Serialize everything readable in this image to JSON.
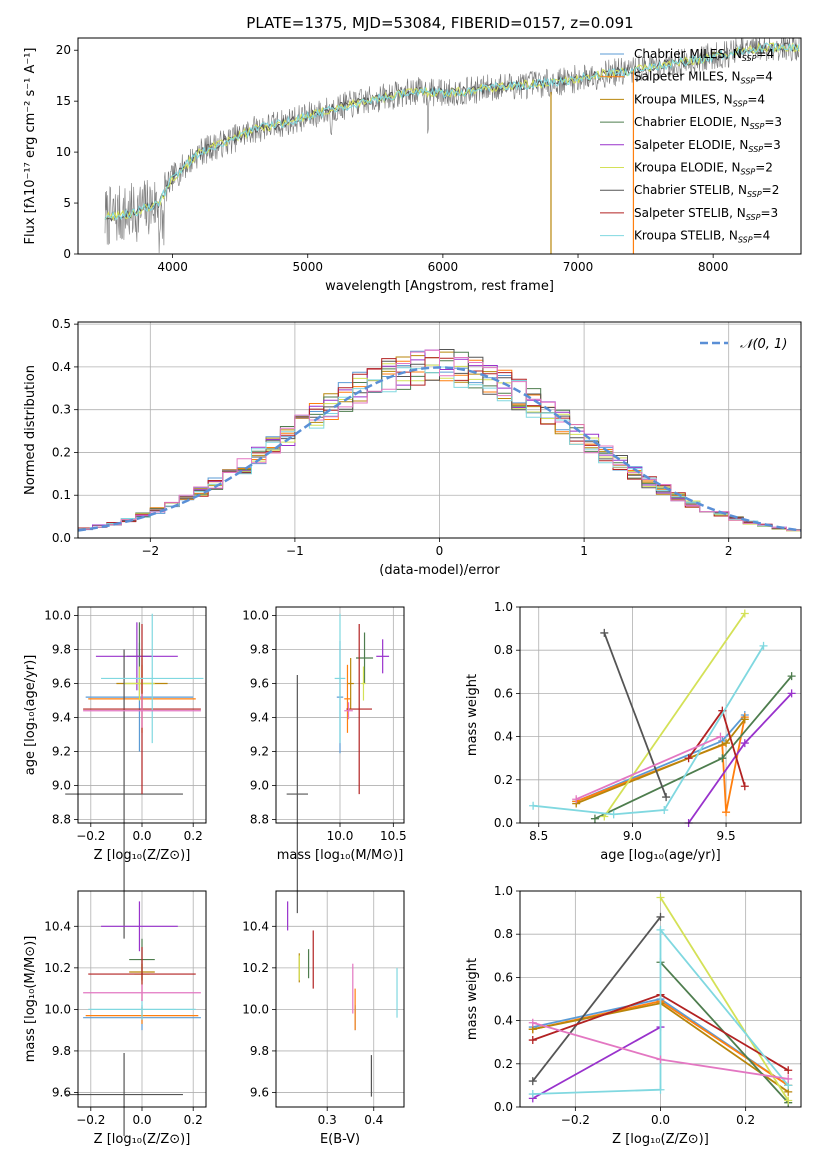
{
  "title": "PLATE=1375, MJD=53084, FIBERID=0157, z=0.091",
  "series_colors": [
    "#5b9bd5",
    "#ff7f0e",
    "#b8860b",
    "#4e7d4e",
    "#9932cc",
    "#d4e157",
    "#555555",
    "#b22222",
    "#80d8e0"
  ],
  "chart_data": [
    {
      "id": "spectrum",
      "type": "line",
      "title": "PLATE=1375, MJD=53084, FIBERID=0157, z=0.091",
      "xlabel": "wavelength [Angstrom, rest frame]",
      "ylabel": "Flux [fλ10⁻¹⁷ erg cm⁻² s⁻¹ A⁻¹]",
      "xlim": [
        3300,
        8650
      ],
      "ylim": [
        0,
        21.2
      ],
      "xticks": [
        "4000",
        "5000",
        "6000",
        "7000",
        "8000"
      ],
      "yticks": [
        "0",
        "5",
        "10",
        "15",
        "20"
      ],
      "legend_position": "right",
      "legend": [
        {
          "label": "Chabrier MILES, N",
          "sub": "SSP",
          "suffix": "=4"
        },
        {
          "label": "Salpeter MILES, N",
          "sub": "SSP",
          "suffix": "=4"
        },
        {
          "label": "Kroupa MILES, N",
          "sub": "SSP",
          "suffix": "=4"
        },
        {
          "label": "Chabrier ELODIE, N",
          "sub": "SSP",
          "suffix": "=3"
        },
        {
          "label": "Salpeter ELODIE, N",
          "sub": "SSP",
          "suffix": "=3"
        },
        {
          "label": "Kroupa ELODIE, N",
          "sub": "SSP",
          "suffix": "=2"
        },
        {
          "label": "Chabrier STELIB, N",
          "sub": "SSP",
          "suffix": "=2"
        },
        {
          "label": "Salpeter STELIB, N",
          "sub": "SSP",
          "suffix": "=3"
        },
        {
          "label": "Kroupa STELIB, N",
          "sub": "SSP",
          "suffix": "=4"
        }
      ],
      "continuum_anchors": {
        "wavelength": [
          3500,
          3700,
          3900,
          4000,
          4200,
          4400,
          4600,
          4800,
          5000,
          5200,
          5400,
          5600,
          5800,
          6000,
          6200,
          6400,
          6600,
          6800,
          7000,
          7200,
          7400,
          7600,
          7800,
          8000,
          8200,
          8400
        ],
        "flux": [
          3.6,
          4.0,
          5.0,
          7.5,
          10.0,
          11.0,
          12.2,
          12.8,
          13.5,
          14.3,
          14.9,
          15.5,
          16.0,
          15.8,
          16.0,
          16.4,
          16.6,
          16.8,
          17.2,
          17.7,
          18.0,
          18.5,
          18.9,
          19.4,
          19.9,
          20.3
        ]
      }
    },
    {
      "id": "residuals",
      "type": "line",
      "xlabel": "(data-model)/error",
      "ylabel": "Normed distribution",
      "xlim": [
        -2.5,
        2.5
      ],
      "ylim": [
        0,
        0.505
      ],
      "xticks": [
        "−2",
        "−1",
        "0",
        "1",
        "2"
      ],
      "yticks": [
        "0.0",
        "0.1",
        "0.2",
        "0.3",
        "0.4",
        "0.5"
      ],
      "grid": true,
      "legend_position": "top-right",
      "legend_label": "𝒩(0, 1)",
      "normal_color": "#5a8fd6",
      "histogram_bin_width": 0.1
    },
    {
      "id": "age_vs_Z",
      "type": "scatter",
      "xlabel": "Z [log₁₀(Z/Z⊙)]",
      "ylabel": "age  [log₁₀(age/yr)]",
      "xlim": [
        -0.25,
        0.25
      ],
      "ylim": [
        8.78,
        10.05
      ],
      "xticks": [
        "−0.2",
        "0.0",
        "0.2"
      ],
      "yticks": [
        "8.8",
        "9.0",
        "9.2",
        "9.4",
        "9.6",
        "9.8",
        "10.0"
      ],
      "grid": true,
      "points": [
        {
          "x": -0.01,
          "y": 9.52,
          "xerr": 0.21,
          "yerr": 0.32
        },
        {
          "x": 0.0,
          "y": 9.51,
          "xerr": 0.21,
          "yerr": 0.2
        },
        {
          "x": 0.0,
          "y": 9.6,
          "xerr": 0.1,
          "yerr": 0.15
        },
        {
          "x": -0.01,
          "y": 9.76,
          "xerr": 0.05,
          "yerr": 0.2
        },
        {
          "x": -0.02,
          "y": 9.76,
          "xerr": 0.16,
          "yerr": 0.2
        },
        {
          "x": -0.01,
          "y": 9.6,
          "xerr": 0.06,
          "yerr": 0.1
        },
        {
          "x": -0.07,
          "y": 8.95,
          "xerr": 0.23,
          "yerr": 0.85
        },
        {
          "x": 0.0,
          "y": 9.45,
          "xerr": 0.23,
          "yerr": 0.5
        },
        {
          "x": 0.04,
          "y": 9.63,
          "xerr": 0.2,
          "yerr": 0.38
        },
        {
          "x": 0.0,
          "y": 9.44,
          "xerr": 0.23,
          "yerr": 0.1
        }
      ],
      "point_colors": [
        "#5b9bd5",
        "#ff7f0e",
        "#b8860b",
        "#4e7d4e",
        "#9932cc",
        "#d4e157",
        "#555555",
        "#b22222",
        "#80d8e0",
        "#e377c2"
      ]
    },
    {
      "id": "age_vs_mass",
      "type": "scatter",
      "xlabel": "mass [log₁₀(M/M⊙)]",
      "xlim": [
        9.4,
        10.6
      ],
      "ylim": [
        8.78,
        10.05
      ],
      "xticks": [
        "10.0",
        "10.5"
      ],
      "yticks": [
        "8.8",
        "9.0",
        "9.2",
        "9.4",
        "9.6",
        "9.8",
        "10.0"
      ],
      "grid": true,
      "points": [
        {
          "x": 10.0,
          "y": 9.52,
          "xerr": 0.03,
          "yerr": 0.33
        },
        {
          "x": 10.07,
          "y": 9.51,
          "xerr": 0.03,
          "yerr": 0.2
        },
        {
          "x": 10.1,
          "y": 9.6,
          "xerr": 0.03,
          "yerr": 0.15
        },
        {
          "x": 10.23,
          "y": 9.75,
          "xerr": 0.08,
          "yerr": 0.15
        },
        {
          "x": 10.4,
          "y": 9.76,
          "xerr": 0.06,
          "yerr": 0.1
        },
        {
          "x": 10.22,
          "y": 9.6,
          "xerr": 0.02,
          "yerr": 0.1
        },
        {
          "x": 9.6,
          "y": 8.95,
          "xerr": 0.1,
          "yerr": 0.7
        },
        {
          "x": 10.18,
          "y": 9.45,
          "xerr": 0.12,
          "yerr": 0.5
        },
        {
          "x": 10.0,
          "y": 9.63,
          "xerr": 0.05,
          "yerr": 0.38
        },
        {
          "x": 10.08,
          "y": 9.44,
          "xerr": 0.04,
          "yerr": 0.05
        }
      ]
    },
    {
      "id": "weight_vs_age",
      "type": "line",
      "xlabel": "age  [log₁₀(age/yr)]",
      "ylabel": "mass weight",
      "xlim": [
        8.4,
        9.9
      ],
      "ylim": [
        0,
        1.0
      ],
      "xticks": [
        "8.5",
        "9.0",
        "9.5"
      ],
      "yticks": [
        "0.0",
        "0.2",
        "0.4",
        "0.6",
        "0.8",
        "1.0"
      ],
      "grid": true,
      "series": [
        {
          "x": [
            8.7,
            9.48,
            9.6
          ],
          "y": [
            0.1,
            0.38,
            0.5
          ]
        },
        {
          "x": [
            8.7,
            9.48,
            9.5,
            9.6
          ],
          "y": [
            0.1,
            0.36,
            0.05,
            0.49
          ]
        },
        {
          "x": [
            8.7,
            9.5,
            9.6
          ],
          "y": [
            0.09,
            0.37,
            0.48
          ]
        },
        {
          "x": [
            8.8,
            9.48,
            9.85
          ],
          "y": [
            0.02,
            0.3,
            0.68
          ]
        },
        {
          "x": [
            9.3,
            9.6,
            9.85
          ],
          "y": [
            0.0,
            0.37,
            0.6
          ]
        },
        {
          "x": [
            8.85,
            9.6
          ],
          "y": [
            0.03,
            0.97
          ]
        },
        {
          "x": [
            8.85,
            9.18
          ],
          "y": [
            0.88,
            0.12
          ]
        },
        {
          "x": [
            9.3,
            9.48,
            9.6
          ],
          "y": [
            0.3,
            0.52,
            0.17
          ]
        },
        {
          "x": [
            8.47,
            8.9,
            9.17,
            9.7
          ],
          "y": [
            0.08,
            0.04,
            0.06,
            0.82
          ]
        },
        {
          "x": [
            8.7,
            9.47
          ],
          "y": [
            0.11,
            0.4
          ]
        }
      ]
    },
    {
      "id": "mass_vs_Z",
      "type": "scatter",
      "xlabel": "Z [log₁₀(Z/Z⊙)]",
      "ylabel": "mass [log₁₀(M/M⊙)]",
      "xlim": [
        -0.25,
        0.25
      ],
      "ylim": [
        9.53,
        10.57
      ],
      "xticks": [
        "−0.2",
        "0.0",
        "0.2"
      ],
      "yticks": [
        "9.6",
        "9.8",
        "10.0",
        "10.2",
        "10.4"
      ],
      "grid": true,
      "points": [
        {
          "x": 0.0,
          "y": 9.96,
          "xerr": 0.23,
          "yerr": 0.06
        },
        {
          "x": 0.0,
          "y": 9.97,
          "xerr": 0.22,
          "yerr": 0.04
        },
        {
          "x": 0.0,
          "y": 10.18,
          "xerr": 0.05,
          "yerr": 0.04
        },
        {
          "x": 0.0,
          "y": 10.24,
          "xerr": 0.05,
          "yerr": 0.1
        },
        {
          "x": -0.01,
          "y": 10.4,
          "xerr": 0.15,
          "yerr": 0.12
        },
        {
          "x": 0.0,
          "y": 10.17,
          "xerr": 0.03,
          "yerr": 0.05
        },
        {
          "x": -0.07,
          "y": 9.59,
          "xerr": 0.23,
          "yerr": 0.2
        },
        {
          "x": 0.0,
          "y": 10.17,
          "xerr": 0.21,
          "yerr": 0.13
        },
        {
          "x": 0.0,
          "y": 10.0,
          "xerr": 0.21,
          "yerr": 0.05
        },
        {
          "x": 0.0,
          "y": 10.08,
          "xerr": 0.23,
          "yerr": 0.04
        }
      ]
    },
    {
      "id": "mass_vs_ebv",
      "type": "scatter",
      "xlabel": "E(B-V)",
      "xlim": [
        0.19,
        0.465
      ],
      "ylim": [
        9.53,
        10.57
      ],
      "xticks": [
        "0.3",
        "0.4"
      ],
      "yticks": [
        "9.6",
        "9.8",
        "10.0",
        "10.2",
        "10.4"
      ],
      "grid": true,
      "points": [
        {
          "x": 0.36,
          "y": 9.96,
          "xerr": 0,
          "yerr": 0.06
        },
        {
          "x": 0.36,
          "y": 10.0,
          "xerr": 0,
          "yerr": 0.1
        },
        {
          "x": 0.24,
          "y": 10.2,
          "xerr": 0,
          "yerr": 0.07
        },
        {
          "x": 0.26,
          "y": 10.22,
          "xerr": 0,
          "yerr": 0.07
        },
        {
          "x": 0.215,
          "y": 10.45,
          "xerr": 0,
          "yerr": 0.07
        },
        {
          "x": 0.24,
          "y": 10.2,
          "xerr": 0,
          "yerr": 0.06
        },
        {
          "x": 0.395,
          "y": 9.68,
          "xerr": 0,
          "yerr": 0.1
        },
        {
          "x": 0.27,
          "y": 10.24,
          "xerr": 0,
          "yerr": 0.14
        },
        {
          "x": 0.45,
          "y": 10.08,
          "xerr": 0,
          "yerr": 0.12
        },
        {
          "x": 0.355,
          "y": 10.1,
          "xerr": 0,
          "yerr": 0.12
        }
      ]
    },
    {
      "id": "weight_vs_Z",
      "type": "line",
      "xlabel": "Z [log₁₀(Z/Z⊙)]",
      "ylabel": "mass weight",
      "xlim": [
        -0.33,
        0.33
      ],
      "ylim": [
        0,
        1.0
      ],
      "xticks": [
        "−0.2",
        "0.0",
        "0.2"
      ],
      "yticks": [
        "0.0",
        "0.2",
        "0.4",
        "0.6",
        "0.8",
        "1.0"
      ],
      "grid": true,
      "series": [
        {
          "x": [
            -0.3,
            0.0,
            0.3
          ],
          "y": [
            0.37,
            0.5,
            0.1
          ]
        },
        {
          "x": [
            -0.3,
            0.0,
            0.3
          ],
          "y": [
            0.36,
            0.49,
            0.1
          ]
        },
        {
          "x": [
            -0.3,
            0.0,
            0.3
          ],
          "y": [
            0.36,
            0.48,
            0.07
          ]
        },
        {
          "x": [
            0.0,
            0.3
          ],
          "y": [
            0.67,
            0.02
          ]
        },
        {
          "x": [
            -0.3,
            0.0
          ],
          "y": [
            0.04,
            0.37
          ]
        },
        {
          "x": [
            0.0,
            0.3
          ],
          "y": [
            0.97,
            0.03
          ]
        },
        {
          "x": [
            -0.3,
            0.0
          ],
          "y": [
            0.12,
            0.88
          ]
        },
        {
          "x": [
            -0.3,
            0.0,
            0.3
          ],
          "y": [
            0.31,
            0.52,
            0.17
          ]
        },
        {
          "x": [
            -0.3,
            0.0,
            0.0,
            0.3
          ],
          "y": [
            0.06,
            0.08,
            0.82,
            0.1
          ]
        },
        {
          "x": [
            -0.3,
            0.0,
            0.3
          ],
          "y": [
            0.39,
            0.22,
            0.13
          ]
        }
      ]
    }
  ]
}
